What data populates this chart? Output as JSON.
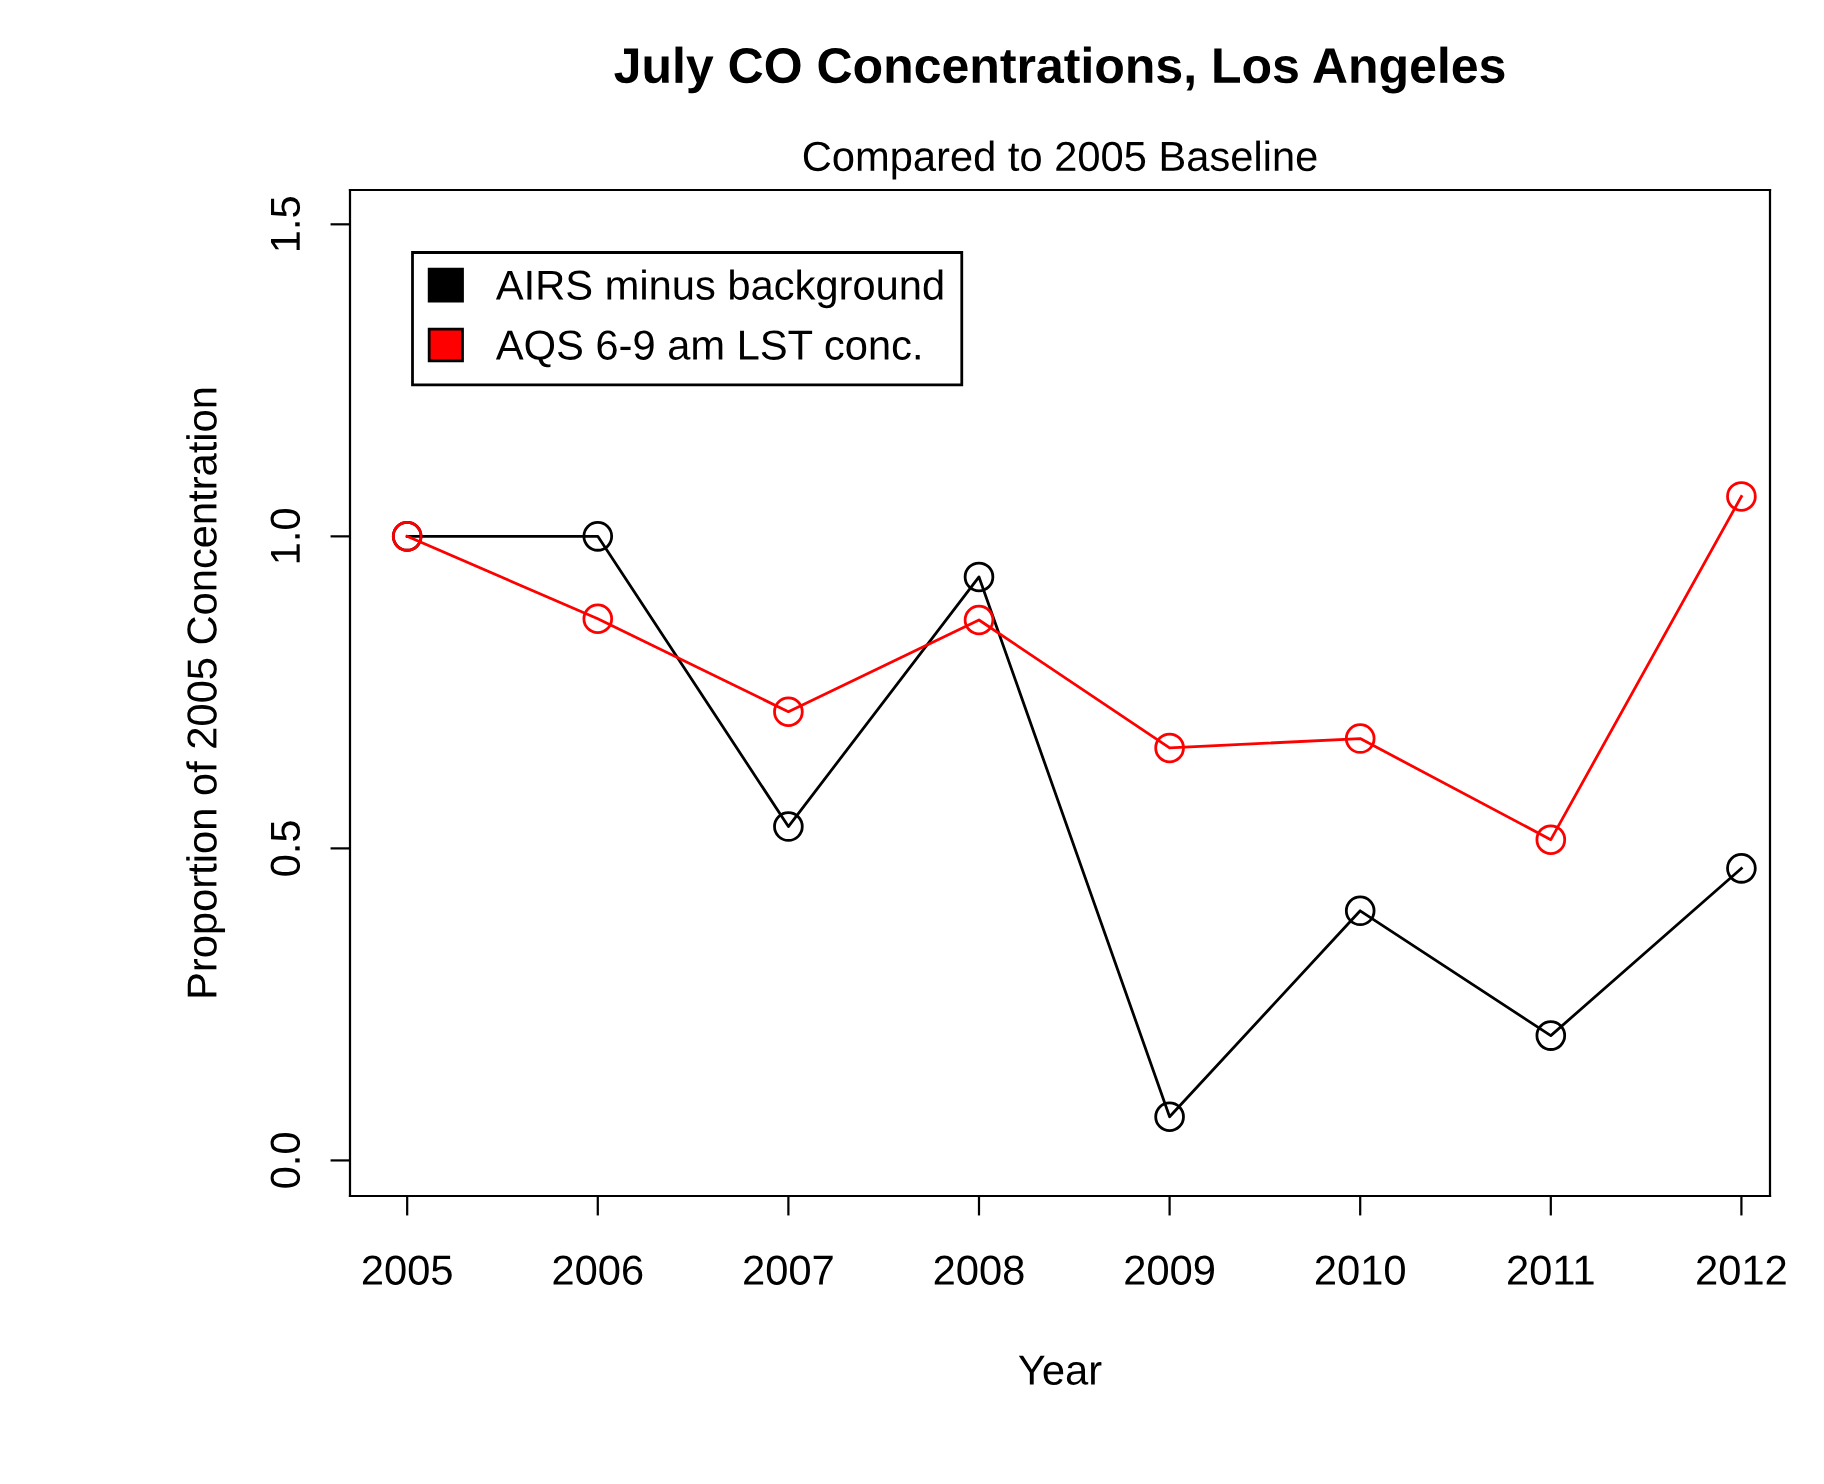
{
  "chart_data": {
    "type": "line",
    "title": "July CO Concentrations, Los Angeles",
    "subtitle": "Compared to 2005 Baseline",
    "xlabel": "Year",
    "ylabel": "Proportion of 2005 Concentration",
    "x": [
      2005,
      2006,
      2007,
      2008,
      2009,
      2010,
      2011,
      2012
    ],
    "series": [
      {
        "name": "AIRS minus background",
        "color": "#000000",
        "values": [
          1.0,
          1.0,
          0.535,
          0.935,
          0.07,
          0.4,
          0.2,
          0.468
        ]
      },
      {
        "name": "AQS 6-9 am LST conc.",
        "color": "#ff0000",
        "values": [
          1.0,
          0.868,
          0.719,
          0.866,
          0.661,
          0.676,
          0.514,
          1.064
        ]
      }
    ],
    "xlim": [
      2004.7,
      2012.15
    ],
    "ylim": [
      -0.057,
      1.555
    ],
    "xticks": [
      2005,
      2006,
      2007,
      2008,
      2009,
      2010,
      2011,
      2012
    ],
    "yticks": [
      {
        "value": 0,
        "label": "0.0"
      },
      0.5,
      {
        "value": 1,
        "label": "1.0"
      },
      1.5
    ],
    "marker": "circle",
    "line_style": "solid",
    "grid": false,
    "legend": "top left"
  }
}
